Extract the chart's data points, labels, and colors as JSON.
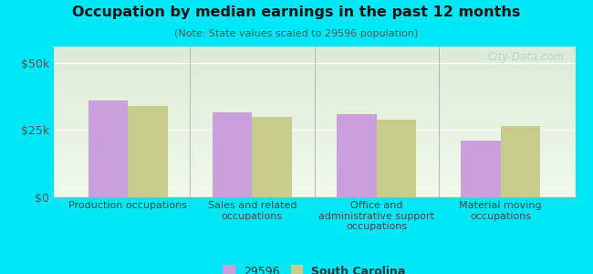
{
  "title": "Occupation by median earnings in the past 12 months",
  "subtitle": "(Note: State values scaled to 29596 population)",
  "background_color": "#00e8f8",
  "categories": [
    "Production occupations",
    "Sales and related\noccupations",
    "Office and\nadministrative support\noccupations",
    "Material moving\noccupations"
  ],
  "series_29596": [
    36000,
    31500,
    31000,
    21000
  ],
  "series_sc": [
    34000,
    30000,
    29000,
    26500
  ],
  "color_29596": "#c9a0dc",
  "color_sc": "#c8cc8a",
  "ylim": [
    0,
    56000
  ],
  "yticks": [
    0,
    25000,
    50000
  ],
  "ytick_labels": [
    "$0",
    "$25k",
    "$50k"
  ],
  "legend_labels": [
    "29596",
    "South Carolina"
  ],
  "bar_width": 0.32,
  "watermark": "City-Data.com",
  "plot_bg_top": "#e8f0e0",
  "plot_bg_bottom": "#f8fdf5",
  "plot_bg_top2": "#ddeedd",
  "separator_color": "#bbbbbb",
  "grid_color": "#ccddbb",
  "spine_color": "#aaaaaa",
  "tick_color": "#555555",
  "xlabel_color": "#444444",
  "title_color": "#111111",
  "subtitle_color": "#555555",
  "legend_color": "#333333",
  "watermark_color": "#bbcccc"
}
